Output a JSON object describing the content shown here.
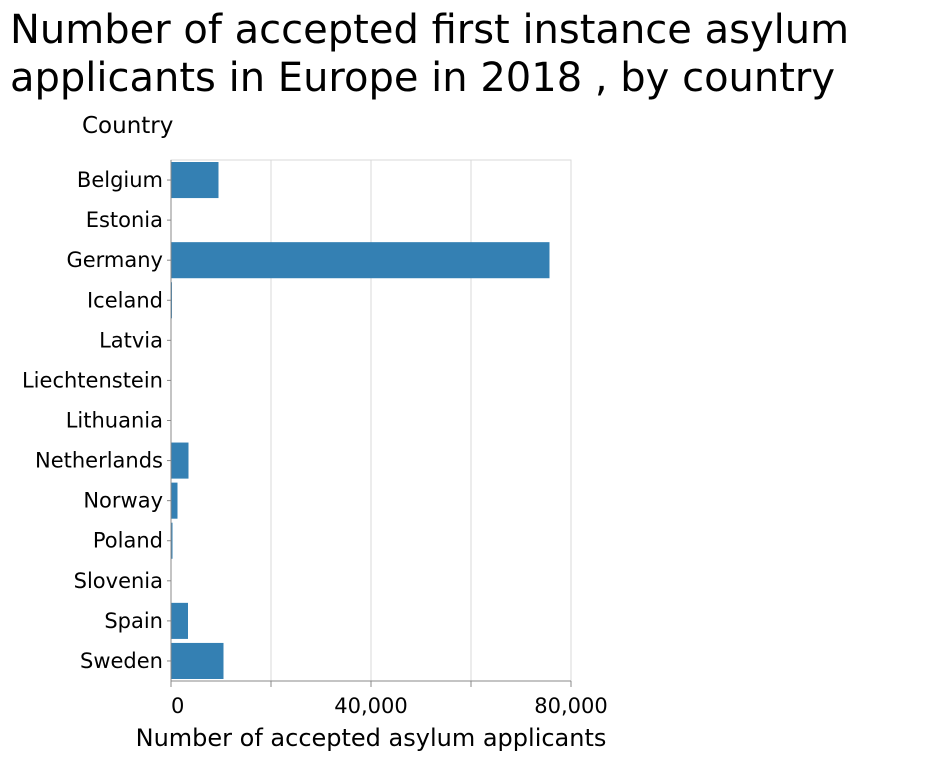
{
  "chart_data": {
    "type": "bar",
    "orientation": "horizontal",
    "title": [
      "Number of accepted first instance asylum",
      "applicants in Europe in 2018 , by country"
    ],
    "xlabel": "Number of accepted asylum applicants",
    "ylabel": "Country",
    "categories": [
      "Belgium",
      "Estonia",
      "Germany",
      "Iceland",
      "Latvia",
      "Liechtenstein",
      "Lithuania",
      "Netherlands",
      "Norway",
      "Poland",
      "Slovenia",
      "Spain",
      "Sweden"
    ],
    "values": [
      9500,
      20,
      75700,
      200,
      30,
      5,
      100,
      3500,
      1300,
      300,
      50,
      3400,
      10500
    ],
    "xlim": [
      0,
      80000
    ],
    "xticks": [
      0,
      20000,
      40000,
      60000,
      80000
    ],
    "xtick_labels": [
      "0",
      "",
      "40,000",
      "",
      "80,000"
    ],
    "grid": "vertical",
    "bar_color": "#3480b3",
    "grid_color": "#d9d9d9",
    "axis_color": "#888888"
  }
}
